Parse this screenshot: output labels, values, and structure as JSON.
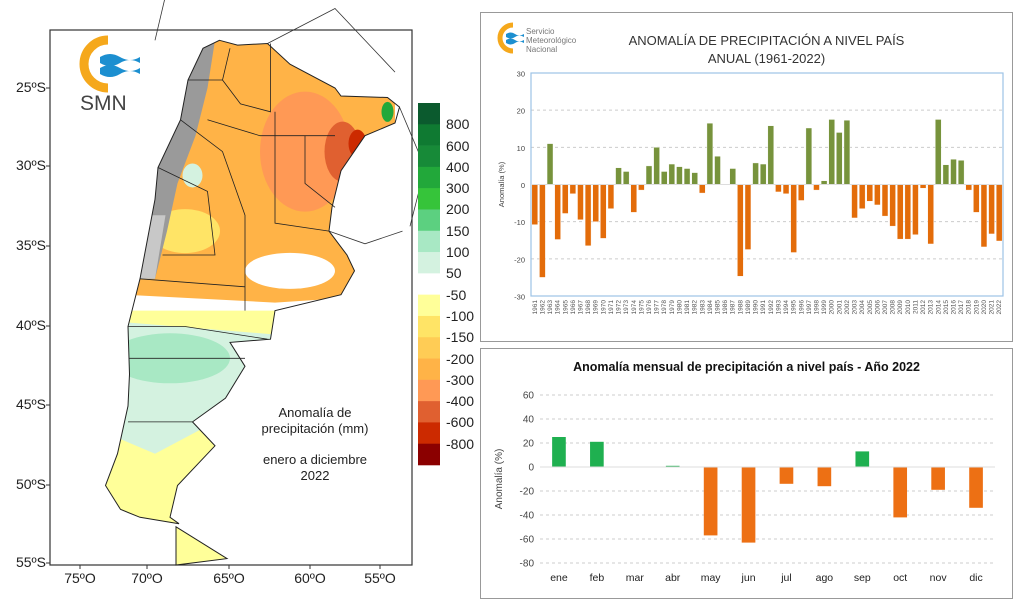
{
  "map": {
    "logo_text": "SMN",
    "lat_labels": [
      "25ºS",
      "30ºS",
      "35ºS",
      "40ºS",
      "45ºS",
      "50ºS",
      "55ºS"
    ],
    "lon_labels": [
      "75ºO",
      "70ºO",
      "65ºO",
      "60ºO",
      "55ºO"
    ],
    "caption_line1": "Anomalía de",
    "caption_line2": "precipitación (mm)",
    "period_line1": "enero a diciembre",
    "period_line2": "2022",
    "legend": {
      "labels": [
        "800",
        "600",
        "400",
        "300",
        "200",
        "150",
        "100",
        "50",
        "-50",
        "-100",
        "-150",
        "-200",
        "-300",
        "-400",
        "-600",
        "-800"
      ],
      "colors": [
        "#0b5a2e",
        "#0f7a32",
        "#178a38",
        "#22a83a",
        "#36c43a",
        "#5cd080",
        "#a8e8c4",
        "#d4f2e0",
        "#ffffff",
        "#ffff99",
        "#ffe466",
        "#ffcc55",
        "#ffb347",
        "#ff9955",
        "#e06030",
        "#cc2a00",
        "#8b0000"
      ]
    }
  },
  "annual": {
    "logo_line1": "Servicio",
    "logo_line2": "Meteorológico",
    "logo_line3": "Nacional",
    "title_line1": "ANOMALÍA DE PRECIPITACIÓN A NIVEL PAÍS",
    "title_line2": "ANUAL (1961-2022)"
  },
  "monthly": {
    "title": "Anomalía mensual de precipitación a nivel país - Año 2022"
  },
  "chart_data": [
    {
      "type": "bar",
      "title": "ANOMALÍA DE PRECIPITACIÓN A NIVEL PAÍS ANUAL (1961-2022)",
      "ylabel": "Anomalía (%)",
      "ylim": [
        -30,
        30
      ],
      "yticks": [
        "30",
        "20",
        "10",
        "0",
        "-10",
        "-20",
        "-30"
      ],
      "grid": true,
      "positive_color": "#77933c",
      "negative_color": "#e36c0a",
      "categories": [
        "1961",
        "1962",
        "1963",
        "1964",
        "1965",
        "1966",
        "1967",
        "1968",
        "1969",
        "1970",
        "1971",
        "1972",
        "1973",
        "1974",
        "1975",
        "1976",
        "1977",
        "1978",
        "1979",
        "1980",
        "1981",
        "1982",
        "1983",
        "1984",
        "1985",
        "1986",
        "1987",
        "1988",
        "1989",
        "1990",
        "1991",
        "1992",
        "1993",
        "1994",
        "1995",
        "1996",
        "1997",
        "1998",
        "1999",
        "2000",
        "2001",
        "2002",
        "2003",
        "2004",
        "2005",
        "2006",
        "2007",
        "2008",
        "2009",
        "2010",
        "2011",
        "2012",
        "2013",
        "2014",
        "2015",
        "2016",
        "2017",
        "2018",
        "2019",
        "2020",
        "2021",
        "2022"
      ],
      "values": [
        -10.8,
        -25,
        11,
        -14.8,
        -7.8,
        -2.5,
        -9.5,
        -16.5,
        -10,
        -14.5,
        -6.5,
        4.5,
        3.5,
        -7.5,
        -1.5,
        5,
        10,
        3.5,
        5.5,
        4.8,
        4.3,
        3.2,
        -2.3,
        16.5,
        7.6,
        0,
        4.3,
        -24.7,
        -17.5,
        5.8,
        5.5,
        15.8,
        -2,
        -2.5,
        -18.3,
        -4.3,
        15.2,
        -1.5,
        1,
        17.5,
        14,
        17.3,
        -9,
        -6.5,
        -4.5,
        -5.5,
        -8.5,
        -11.2,
        -14.7,
        -14.7,
        -13.5,
        -1,
        -16,
        17.5,
        5.3,
        6.8,
        6.5,
        -1.5,
        -7.5,
        -16.8,
        -13.3,
        -15.2
      ]
    },
    {
      "type": "bar",
      "title": "Anomalía mensual de precipitación a nivel país - Año 2022",
      "ylabel": "Anomalía (%)",
      "ylim": [
        -80,
        60
      ],
      "yticks": [
        "60",
        "40",
        "20",
        "0",
        "-20",
        "-40",
        "-60",
        "-80"
      ],
      "grid": true,
      "positive_color": "#1fb050",
      "negative_color": "#ed7014",
      "categories": [
        "ene",
        "feb",
        "mar",
        "abr",
        "may",
        "jun",
        "jul",
        "ago",
        "sep",
        "oct",
        "nov",
        "dic"
      ],
      "values": [
        25,
        21,
        0,
        1,
        -57,
        -63,
        -14,
        -16,
        13,
        -42,
        -19,
        -34
      ]
    }
  ]
}
